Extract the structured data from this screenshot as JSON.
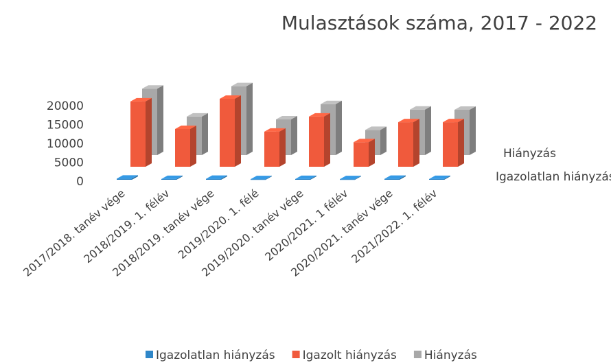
{
  "chart_data": {
    "type": "bar3d",
    "title": "Mulasztások száma, 2017 - 2022",
    "categories": [
      "2017/2018. tanév vége",
      "2018/2019. 1. félév",
      "2018/2019. tanév vége",
      "2019/2020. 1. félé",
      "2019/2020. tanév vége",
      "2020/2021. 1 félév",
      "2020/2021. tanév vége",
      "2021/2022. 1. félév"
    ],
    "series": [
      {
        "name": "Igazolatlan hiányzás",
        "color": "#2e86c8",
        "values": [
          300,
          200,
          250,
          150,
          200,
          150,
          250,
          200
        ]
      },
      {
        "name": "Igazolt hiányzás",
        "color": "#f05a3c",
        "values": [
          17300,
          10000,
          18000,
          9300,
          13300,
          6500,
          11800,
          11800
        ]
      },
      {
        "name": "Hiányzás",
        "color": "#a8a8a8",
        "values": [
          17600,
          10200,
          18250,
          9450,
          13500,
          6650,
          12050,
          12000
        ]
      }
    ],
    "depth_labels": [
      "Hiányzás",
      "Igazolatlan hiányzás"
    ],
    "ylim": [
      0,
      20000
    ],
    "yticks": [
      0,
      5000,
      10000,
      15000,
      20000
    ]
  }
}
